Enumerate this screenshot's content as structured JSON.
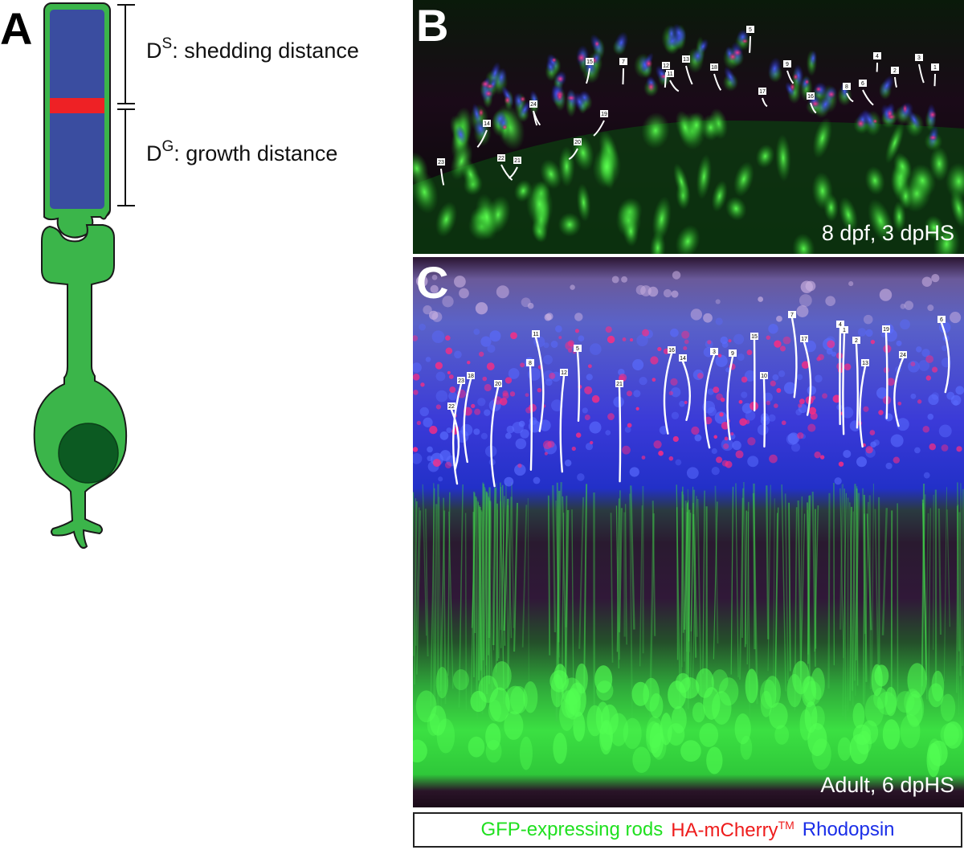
{
  "panels": {
    "a": {
      "letter": "A",
      "shedding_label": {
        "prefix": "D",
        "sup": "S",
        "text": ": shedding distance"
      },
      "growth_label": {
        "prefix": "D",
        "sup": "G",
        "text": ": growth distance"
      },
      "colors": {
        "cell": "#3bb54a",
        "outer_segment": "#3a4da0",
        "band": "#ee2125",
        "nucleus": "#0c5a22",
        "outline": "#1a1a1a"
      }
    },
    "b": {
      "letter": "B",
      "caption": "8 dpf, 3 dpHS",
      "trace_labels": [
        "1",
        "2",
        "3",
        "4",
        "5",
        "6",
        "7",
        "8",
        "9",
        "10",
        "11",
        "12",
        "13",
        "14",
        "15",
        "16",
        "17",
        "18",
        "19",
        "20",
        "21",
        "22",
        "23",
        "24"
      ]
    },
    "c": {
      "letter": "C",
      "caption": "Adult, 6 dpHS",
      "trace_labels": [
        "1",
        "2",
        "3",
        "4",
        "5",
        "6",
        "7",
        "8",
        "9",
        "10",
        "11",
        "12",
        "13",
        "14",
        "15",
        "16",
        "17",
        "18",
        "19",
        "20",
        "21",
        "22",
        "23",
        "24"
      ]
    }
  },
  "legend": {
    "gfp": "GFP-expressing rods",
    "ha_prefix": "HA-mCherry",
    "ha_sup": "TM",
    "rhodopsin": "Rhodopsin",
    "colors": {
      "gfp": "#20e020",
      "ha": "#ee1c1c",
      "rhodopsin": "#1a2ee8"
    }
  }
}
